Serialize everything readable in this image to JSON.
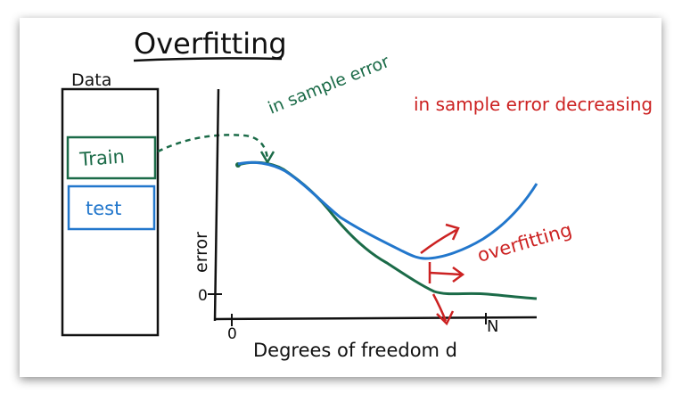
{
  "title": "Overfitting",
  "data_label": "Data",
  "train_label": "Train",
  "test_label": "test",
  "in_sample_label": "in sample error",
  "in_sample_decreasing": "in sample error decreasing",
  "overfitting_label": "overfitting",
  "y_axis_label": "error",
  "y_zero": "0",
  "x_zero": "0",
  "x_n": "N",
  "x_axis_label": "Degrees of freedom d",
  "colors": {
    "ink": "#111111",
    "green": "#1b6b48",
    "blue": "#2277cc",
    "red": "#cc2222"
  }
}
